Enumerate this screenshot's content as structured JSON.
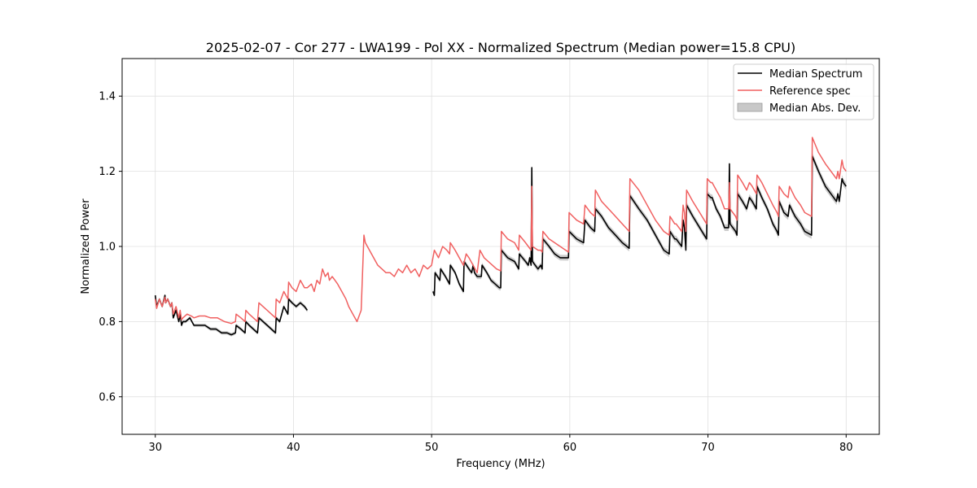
{
  "chart_data": {
    "type": "line",
    "title": "2025-02-07 - Cor 277 - LWA199 - Pol XX - Normalized Spectrum (Median power=15.8 CPU)",
    "xlabel": "Frequency (MHz)",
    "ylabel": "Normalized Power",
    "xlim": [
      27.6,
      82.4
    ],
    "ylim": [
      0.5,
      1.5
    ],
    "xticks": [
      30,
      40,
      50,
      60,
      70,
      80
    ],
    "yticks": [
      0.6,
      0.8,
      1.0,
      1.2,
      1.4
    ],
    "grid": true,
    "legend_position": "top-right",
    "legend": [
      "Median Spectrum",
      "Reference spec",
      "Median Abs. Dev."
    ],
    "colors": {
      "median": "#000000",
      "reference": "#f06060",
      "mad": "#b0b0b0",
      "grid": "#e0e0e0"
    },
    "series": [
      {
        "name": "Median Spectrum",
        "segments": [
          {
            "x": [
              30.0,
              30.1,
              30.3,
              30.5,
              30.7,
              30.75,
              30.9,
              31.1,
              31.2,
              31.3,
              31.5,
              31.7,
              31.8,
              31.9,
              32.0,
              32.2,
              32.5,
              32.8,
              33.0,
              33.3,
              33.6,
              34.0,
              34.4,
              34.8,
              35.2,
              35.5,
              35.8,
              35.85,
              36.2,
              36.5,
              36.55,
              36.8,
              37.1,
              37.4,
              37.5,
              37.8,
              38.1,
              38.4,
              38.7,
              38.75,
              39.0,
              39.3,
              39.6,
              39.65,
              39.9,
              40.2,
              40.5,
              40.8,
              41.0
            ],
            "y": [
              0.87,
              0.84,
              0.86,
              0.84,
              0.87,
              0.85,
              0.86,
              0.84,
              0.85,
              0.81,
              0.83,
              0.8,
              0.82,
              0.79,
              0.8,
              0.8,
              0.81,
              0.79,
              0.79,
              0.79,
              0.79,
              0.78,
              0.78,
              0.77,
              0.77,
              0.765,
              0.77,
              0.79,
              0.78,
              0.77,
              0.8,
              0.79,
              0.78,
              0.77,
              0.81,
              0.8,
              0.79,
              0.78,
              0.77,
              0.81,
              0.8,
              0.84,
              0.82,
              0.86,
              0.85,
              0.84,
              0.85,
              0.84,
              0.83
            ]
          },
          {
            "x": [
              50.1,
              50.2,
              50.25,
              50.6,
              50.65,
              51.0,
              51.3,
              51.35,
              51.7,
              52.0,
              52.3,
              52.35,
              52.7,
              52.9,
              53.0,
              53.1,
              53.3,
              53.6,
              53.65,
              54.0,
              54.3,
              54.6,
              54.9,
              55.0,
              55.05,
              55.5,
              56.0,
              56.3,
              56.35,
              56.8,
              57.0,
              57.1,
              57.2,
              57.25,
              57.3,
              57.5,
              57.7,
              57.9,
              58.0,
              58.05,
              58.5,
              58.9,
              59.3,
              59.7,
              59.9,
              59.95,
              60.5,
              61.0,
              61.1,
              61.5,
              61.8,
              61.85,
              62.3,
              62.8,
              63.3,
              63.8,
              64.3,
              64.35,
              65.0,
              65.6,
              66.2,
              66.8,
              67.2,
              67.25,
              67.6,
              67.7,
              68.1,
              68.2,
              68.3,
              68.4,
              68.45,
              68.9,
              69.4,
              69.9,
              69.95,
              70.2,
              70.3,
              70.6,
              70.9,
              71.2,
              71.5,
              71.55,
              71.6,
              72.0,
              72.1,
              72.15,
              72.5,
              72.8,
              73.0,
              73.2,
              73.5,
              73.55,
              73.9,
              74.3,
              74.7,
              75.0,
              75.1,
              75.15,
              75.5,
              75.8,
              75.9,
              76.3,
              76.7,
              77.0,
              77.5,
              77.55,
              78.0,
              78.5,
              78.9,
              79.3,
              79.4,
              79.5,
              79.7,
              79.8,
              80.0
            ],
            "y": [
              0.88,
              0.87,
              0.93,
              0.91,
              0.94,
              0.92,
              0.9,
              0.95,
              0.93,
              0.9,
              0.88,
              0.96,
              0.94,
              0.93,
              0.95,
              0.93,
              0.92,
              0.92,
              0.95,
              0.93,
              0.91,
              0.9,
              0.89,
              0.89,
              0.99,
              0.97,
              0.96,
              0.94,
              0.98,
              0.96,
              0.95,
              0.97,
              0.95,
              1.21,
              0.96,
              0.95,
              0.94,
              0.95,
              0.94,
              1.02,
              1.0,
              0.98,
              0.97,
              0.97,
              0.97,
              1.04,
              1.02,
              1.01,
              1.07,
              1.05,
              1.04,
              1.1,
              1.08,
              1.05,
              1.03,
              1.01,
              0.995,
              1.135,
              1.1,
              1.07,
              1.03,
              0.99,
              0.98,
              1.04,
              1.02,
              1.02,
              1.0,
              1.07,
              1.05,
              0.99,
              1.11,
              1.08,
              1.05,
              1.02,
              1.14,
              1.13,
              1.13,
              1.1,
              1.08,
              1.05,
              1.05,
              1.22,
              1.06,
              1.04,
              1.03,
              1.14,
              1.12,
              1.1,
              1.13,
              1.12,
              1.1,
              1.16,
              1.13,
              1.1,
              1.06,
              1.04,
              1.03,
              1.12,
              1.09,
              1.08,
              1.11,
              1.08,
              1.06,
              1.04,
              1.03,
              1.24,
              1.2,
              1.16,
              1.14,
              1.12,
              1.14,
              1.12,
              1.18,
              1.17,
              1.16
            ]
          }
        ]
      },
      {
        "name": "Reference spec",
        "segments": [
          {
            "x": [
              30.0,
              30.1,
              30.3,
              30.5,
              30.7,
              30.75,
              30.9,
              31.1,
              31.2,
              31.3,
              31.5,
              31.7,
              31.8,
              31.9,
              32.0,
              32.3,
              32.6,
              32.8,
              33.2,
              33.6,
              34.0,
              34.5,
              35.0,
              35.5,
              35.8,
              35.85,
              36.2,
              36.5,
              36.55,
              36.8,
              37.1,
              37.4,
              37.5,
              37.8,
              38.1,
              38.4,
              38.7,
              38.75,
              39.0,
              39.3,
              39.6,
              39.65,
              39.9,
              40.2,
              40.5,
              40.8,
              41.0,
              41.3,
              41.5,
              41.7,
              41.9,
              42.1,
              42.3,
              42.5,
              42.6,
              42.8,
              43.0,
              43.2,
              43.5,
              43.8,
              44.0,
              44.3,
              44.6,
              44.9,
              45.1,
              45.2,
              45.5,
              45.8,
              46.1,
              46.4,
              46.7,
              47.0,
              47.3,
              47.6,
              47.9,
              48.2,
              48.5,
              48.8,
              49.1,
              49.4,
              49.7,
              50.0,
              50.2,
              50.5,
              50.8,
              51.1,
              51.3,
              51.35,
              51.7,
              52.0,
              52.3,
              52.5,
              52.7,
              53.0,
              53.3,
              53.5,
              53.8,
              54.1,
              54.4,
              54.7,
              55.0,
              55.05,
              55.5,
              56.0,
              56.3,
              56.35,
              56.8,
              57.0,
              57.2,
              57.25,
              57.3,
              57.5,
              57.7,
              57.9,
              58.0,
              58.05,
              58.5,
              58.9,
              59.3,
              59.7,
              59.9,
              59.95,
              60.5,
              61.0,
              61.1,
              61.5,
              61.8,
              61.85,
              62.3,
              62.8,
              63.3,
              63.8,
              64.3,
              64.35,
              65.0,
              65.6,
              66.2,
              66.8,
              67.2,
              67.25,
              67.6,
              67.7,
              68.1,
              68.2,
              68.3,
              68.4,
              68.45,
              68.9,
              69.4,
              69.9,
              69.95,
              70.2,
              70.3,
              70.6,
              70.9,
              71.2,
              71.5,
              71.55,
              71.6,
              72.0,
              72.1,
              72.15,
              72.5,
              72.8,
              73.0,
              73.2,
              73.5,
              73.55,
              73.9,
              74.3,
              74.7,
              75.0,
              75.1,
              75.15,
              75.5,
              75.8,
              75.9,
              76.3,
              76.7,
              77.0,
              77.5,
              77.55,
              78.0,
              78.5,
              78.9,
              79.3,
              79.4,
              79.5,
              79.7,
              79.8,
              80.0
            ],
            "y": [
              0.86,
              0.835,
              0.86,
              0.84,
              0.865,
              0.85,
              0.86,
              0.84,
              0.85,
              0.82,
              0.84,
              0.81,
              0.83,
              0.805,
              0.81,
              0.82,
              0.815,
              0.81,
              0.815,
              0.815,
              0.81,
              0.81,
              0.8,
              0.795,
              0.8,
              0.82,
              0.81,
              0.8,
              0.83,
              0.82,
              0.81,
              0.8,
              0.85,
              0.84,
              0.83,
              0.82,
              0.81,
              0.86,
              0.85,
              0.88,
              0.86,
              0.905,
              0.89,
              0.88,
              0.91,
              0.89,
              0.89,
              0.9,
              0.88,
              0.91,
              0.9,
              0.94,
              0.92,
              0.93,
              0.91,
              0.92,
              0.91,
              0.9,
              0.88,
              0.86,
              0.84,
              0.82,
              0.8,
              0.83,
              1.03,
              1.01,
              0.99,
              0.97,
              0.95,
              0.94,
              0.93,
              0.93,
              0.92,
              0.94,
              0.93,
              0.95,
              0.93,
              0.94,
              0.92,
              0.95,
              0.94,
              0.95,
              0.99,
              0.97,
              1.0,
              0.99,
              0.98,
              1.01,
              0.99,
              0.97,
              0.95,
              0.98,
              0.97,
              0.95,
              0.93,
              0.99,
              0.97,
              0.96,
              0.95,
              0.94,
              0.935,
              1.04,
              1.02,
              1.01,
              0.99,
              1.03,
              1.01,
              1.0,
              0.99,
              1.16,
              1.0,
              0.995,
              0.99,
              0.99,
              0.985,
              1.04,
              1.02,
              1.01,
              1.0,
              0.99,
              0.985,
              1.09,
              1.07,
              1.06,
              1.11,
              1.09,
              1.08,
              1.15,
              1.12,
              1.1,
              1.08,
              1.06,
              1.04,
              1.18,
              1.15,
              1.11,
              1.07,
              1.04,
              1.03,
              1.08,
              1.06,
              1.06,
              1.04,
              1.11,
              1.09,
              1.04,
              1.15,
              1.12,
              1.09,
              1.06,
              1.18,
              1.17,
              1.17,
              1.15,
              1.13,
              1.1,
              1.1,
              1.17,
              1.1,
              1.08,
              1.07,
              1.19,
              1.17,
              1.15,
              1.17,
              1.16,
              1.14,
              1.19,
              1.17,
              1.14,
              1.11,
              1.09,
              1.08,
              1.16,
              1.14,
              1.13,
              1.16,
              1.13,
              1.11,
              1.09,
              1.08,
              1.29,
              1.25,
              1.22,
              1.2,
              1.18,
              1.2,
              1.18,
              1.23,
              1.21,
              1.2
            ]
          }
        ]
      }
    ]
  }
}
